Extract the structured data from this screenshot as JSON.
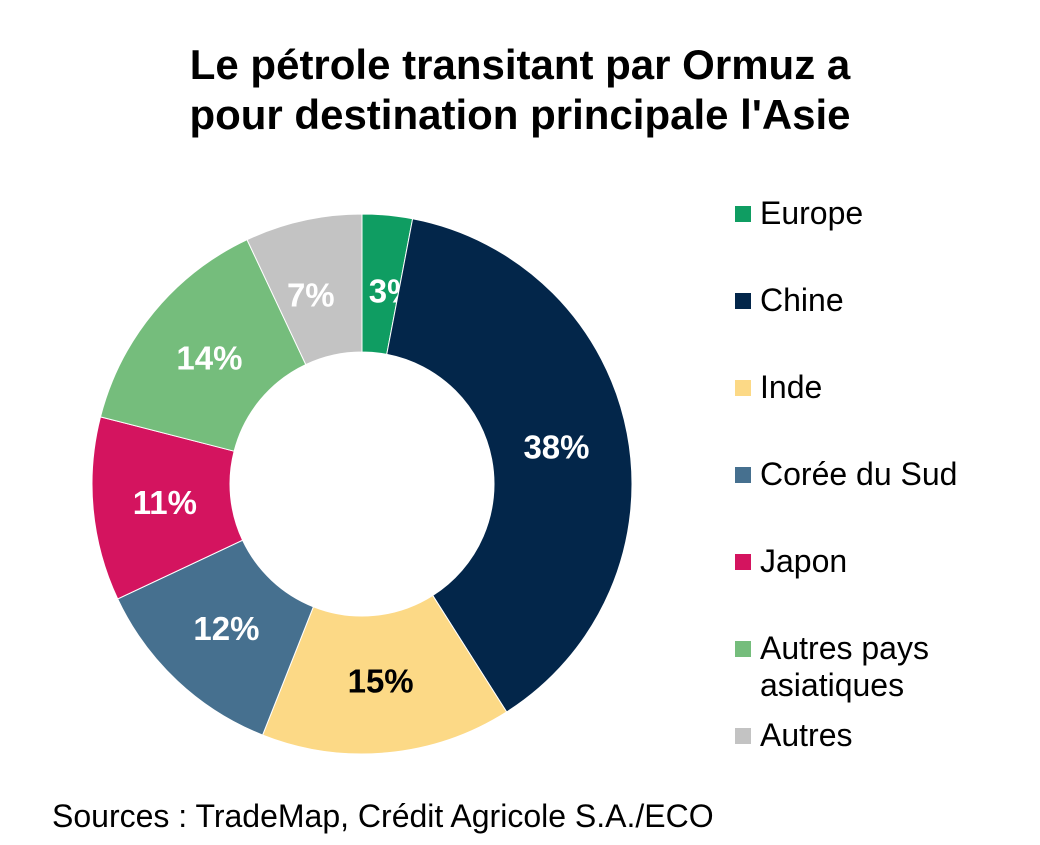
{
  "chart_data": {
    "type": "pie",
    "title_lines": [
      "Le pétrole transitant par Ormuz a",
      "pour destination principale l'Asie"
    ],
    "categories": [
      "Europe",
      "Chine",
      "Inde",
      "Corée du Sud",
      "Japon",
      "Autres pays asiatiques",
      "Autres"
    ],
    "values": [
      3,
      38,
      15,
      12,
      11,
      14,
      7
    ],
    "value_labels": [
      "3%",
      "38%",
      "15%",
      "12%",
      "11%",
      "14%",
      "7%"
    ],
    "colors": [
      "#0f9d62",
      "#03264a",
      "#fcd986",
      "#46708f",
      "#d4145f",
      "#75bd7c",
      "#c3c3c3"
    ],
    "label_colors": [
      "#ffffff",
      "#ffffff",
      "#000000",
      "#ffffff",
      "#ffffff",
      "#ffffff",
      "#ffffff"
    ],
    "donut": true,
    "legend_position": "right"
  },
  "source": "Sources : TradeMap, Crédit Agricole S.A./ECO"
}
